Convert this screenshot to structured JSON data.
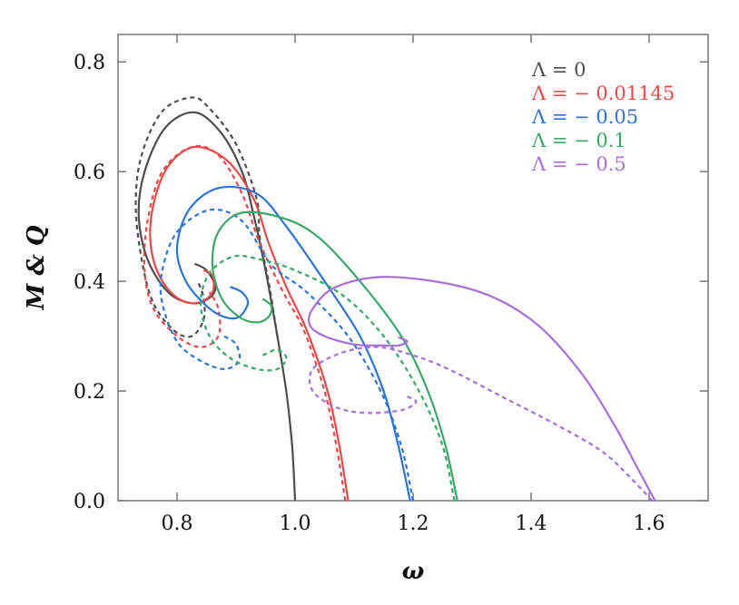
{
  "chart_data": {
    "type": "line",
    "xlabel": "ω",
    "ylabel": "M & Q",
    "xlim": [
      0.7,
      1.7
    ],
    "ylim": [
      0.0,
      0.85
    ],
    "x_ticks": [
      0.8,
      1.0,
      1.2,
      1.4,
      1.6
    ],
    "y_ticks": [
      0.0,
      0.2,
      0.4,
      0.6,
      0.8
    ],
    "x_tick_labels": [
      "0.8",
      "1.0",
      "1.2",
      "1.4",
      "1.6"
    ],
    "y_tick_labels": [
      "0.0",
      "0.2",
      "0.4",
      "0.6",
      "0.8"
    ],
    "grid": false,
    "legend_position": "top-right",
    "line_styles_note": "solid lines show M, dashed lines show Q",
    "series": [
      {
        "name": "Λ = 0",
        "color": "#4d4d4d",
        "M": [
          [
            1.0,
            0.0
          ],
          [
            0.995,
            0.1
          ],
          [
            0.985,
            0.2
          ],
          [
            0.97,
            0.3
          ],
          [
            0.95,
            0.42
          ],
          [
            0.93,
            0.52
          ],
          [
            0.91,
            0.6
          ],
          [
            0.875,
            0.67
          ],
          [
            0.83,
            0.708
          ],
          [
            0.78,
            0.68
          ],
          [
            0.745,
            0.6
          ],
          [
            0.735,
            0.52
          ],
          [
            0.75,
            0.44
          ],
          [
            0.785,
            0.38
          ],
          [
            0.825,
            0.36
          ],
          [
            0.855,
            0.37
          ],
          [
            0.865,
            0.39
          ],
          [
            0.85,
            0.42
          ],
          [
            0.83,
            0.432
          ]
        ],
        "Q": [
          [
            0.97,
            0.3
          ],
          [
            0.955,
            0.4
          ],
          [
            0.94,
            0.48
          ],
          [
            0.935,
            0.55
          ],
          [
            0.9,
            0.65
          ],
          [
            0.855,
            0.715
          ],
          [
            0.825,
            0.735
          ],
          [
            0.775,
            0.71
          ],
          [
            0.74,
            0.63
          ],
          [
            0.73,
            0.54
          ],
          [
            0.74,
            0.44
          ],
          [
            0.76,
            0.36
          ],
          [
            0.795,
            0.31
          ],
          [
            0.825,
            0.3
          ],
          [
            0.845,
            0.33
          ],
          [
            0.845,
            0.37
          ],
          [
            0.835,
            0.4
          ]
        ]
      },
      {
        "name": "Λ = − 0.01145",
        "color": "#e84a4a",
        "M": [
          [
            1.09,
            0.0
          ],
          [
            1.075,
            0.1
          ],
          [
            1.055,
            0.2
          ],
          [
            1.02,
            0.31
          ],
          [
            0.985,
            0.39
          ],
          [
            0.955,
            0.47
          ],
          [
            0.93,
            0.55
          ],
          [
            0.885,
            0.62
          ],
          [
            0.83,
            0.645
          ],
          [
            0.785,
            0.61
          ],
          [
            0.76,
            0.54
          ],
          [
            0.755,
            0.47
          ],
          [
            0.77,
            0.41
          ],
          [
            0.8,
            0.37
          ],
          [
            0.835,
            0.36
          ],
          [
            0.86,
            0.38
          ],
          [
            0.86,
            0.41
          ],
          [
            0.845,
            0.42
          ]
        ],
        "Q": [
          [
            1.085,
            0.0
          ],
          [
            1.07,
            0.1
          ],
          [
            1.05,
            0.2
          ],
          [
            1.015,
            0.31
          ],
          [
            0.98,
            0.38
          ],
          [
            0.94,
            0.47
          ],
          [
            0.91,
            0.56
          ],
          [
            0.87,
            0.63
          ],
          [
            0.825,
            0.645
          ],
          [
            0.775,
            0.6
          ],
          [
            0.75,
            0.51
          ],
          [
            0.745,
            0.42
          ],
          [
            0.76,
            0.35
          ],
          [
            0.8,
            0.3
          ],
          [
            0.84,
            0.28
          ],
          [
            0.87,
            0.3
          ],
          [
            0.87,
            0.35
          ],
          [
            0.855,
            0.38
          ]
        ]
      },
      {
        "name": "Λ = − 0.05",
        "color": "#2d74d4",
        "M": [
          [
            1.195,
            0.0
          ],
          [
            1.175,
            0.1
          ],
          [
            1.15,
            0.2
          ],
          [
            1.11,
            0.3
          ],
          [
            1.05,
            0.4
          ],
          [
            0.985,
            0.5
          ],
          [
            0.935,
            0.56
          ],
          [
            0.87,
            0.57
          ],
          [
            0.82,
            0.53
          ],
          [
            0.8,
            0.46
          ],
          [
            0.815,
            0.4
          ],
          [
            0.85,
            0.355
          ],
          [
            0.88,
            0.335
          ],
          [
            0.905,
            0.335
          ],
          [
            0.92,
            0.36
          ],
          [
            0.91,
            0.38
          ],
          [
            0.89,
            0.39
          ]
        ],
        "Q": [
          [
            1.2,
            0.0
          ],
          [
            1.18,
            0.1
          ],
          [
            1.145,
            0.2
          ],
          [
            1.09,
            0.3
          ],
          [
            1.02,
            0.38
          ],
          [
            0.96,
            0.43
          ],
          [
            0.91,
            0.51
          ],
          [
            0.855,
            0.53
          ],
          [
            0.8,
            0.49
          ],
          [
            0.775,
            0.42
          ],
          [
            0.775,
            0.36
          ],
          [
            0.8,
            0.29
          ],
          [
            0.84,
            0.255
          ],
          [
            0.88,
            0.24
          ],
          [
            0.905,
            0.255
          ],
          [
            0.9,
            0.285
          ],
          [
            0.88,
            0.3
          ]
        ]
      },
      {
        "name": "Λ = − 0.1",
        "color": "#3aa769",
        "M": [
          [
            1.275,
            0.0
          ],
          [
            1.255,
            0.1
          ],
          [
            1.225,
            0.2
          ],
          [
            1.18,
            0.3
          ],
          [
            1.11,
            0.4
          ],
          [
            1.04,
            0.48
          ],
          [
            0.98,
            0.515
          ],
          [
            0.91,
            0.525
          ],
          [
            0.87,
            0.49
          ],
          [
            0.86,
            0.43
          ],
          [
            0.875,
            0.37
          ],
          [
            0.905,
            0.335
          ],
          [
            0.935,
            0.325
          ],
          [
            0.955,
            0.335
          ],
          [
            0.96,
            0.355
          ],
          [
            0.945,
            0.368
          ]
        ],
        "Q": [
          [
            1.27,
            0.0
          ],
          [
            1.25,
            0.1
          ],
          [
            1.21,
            0.2
          ],
          [
            1.15,
            0.3
          ],
          [
            1.08,
            0.375
          ],
          [
            1.0,
            0.42
          ],
          [
            0.94,
            0.44
          ],
          [
            0.895,
            0.445
          ],
          [
            0.855,
            0.415
          ],
          [
            0.84,
            0.36
          ],
          [
            0.855,
            0.3
          ],
          [
            0.89,
            0.26
          ],
          [
            0.935,
            0.24
          ],
          [
            0.97,
            0.24
          ],
          [
            0.985,
            0.26
          ],
          [
            0.97,
            0.275
          ],
          [
            0.945,
            0.265
          ]
        ]
      },
      {
        "name": "Λ = − 0.5",
        "color": "#a66fd9",
        "M": [
          [
            1.61,
            0.0
          ],
          [
            1.58,
            0.06
          ],
          [
            1.54,
            0.14
          ],
          [
            1.48,
            0.24
          ],
          [
            1.4,
            0.33
          ],
          [
            1.3,
            0.385
          ],
          [
            1.16,
            0.408
          ],
          [
            1.07,
            0.39
          ],
          [
            1.03,
            0.35
          ],
          [
            1.025,
            0.32
          ],
          [
            1.05,
            0.3
          ],
          [
            1.1,
            0.285
          ],
          [
            1.15,
            0.283
          ],
          [
            1.175,
            0.283
          ],
          [
            1.19,
            0.29
          ],
          [
            1.175,
            0.298
          ]
        ],
        "Q": [
          [
            1.605,
            0.0
          ],
          [
            1.57,
            0.04
          ],
          [
            1.52,
            0.09
          ],
          [
            1.44,
            0.14
          ],
          [
            1.35,
            0.19
          ],
          [
            1.26,
            0.24
          ],
          [
            1.2,
            0.265
          ],
          [
            1.14,
            0.28
          ],
          [
            1.08,
            0.27
          ],
          [
            1.03,
            0.24
          ],
          [
            1.03,
            0.2
          ],
          [
            1.07,
            0.17
          ],
          [
            1.12,
            0.16
          ],
          [
            1.18,
            0.165
          ],
          [
            1.205,
            0.18
          ],
          [
            1.19,
            0.19
          ]
        ]
      }
    ]
  }
}
